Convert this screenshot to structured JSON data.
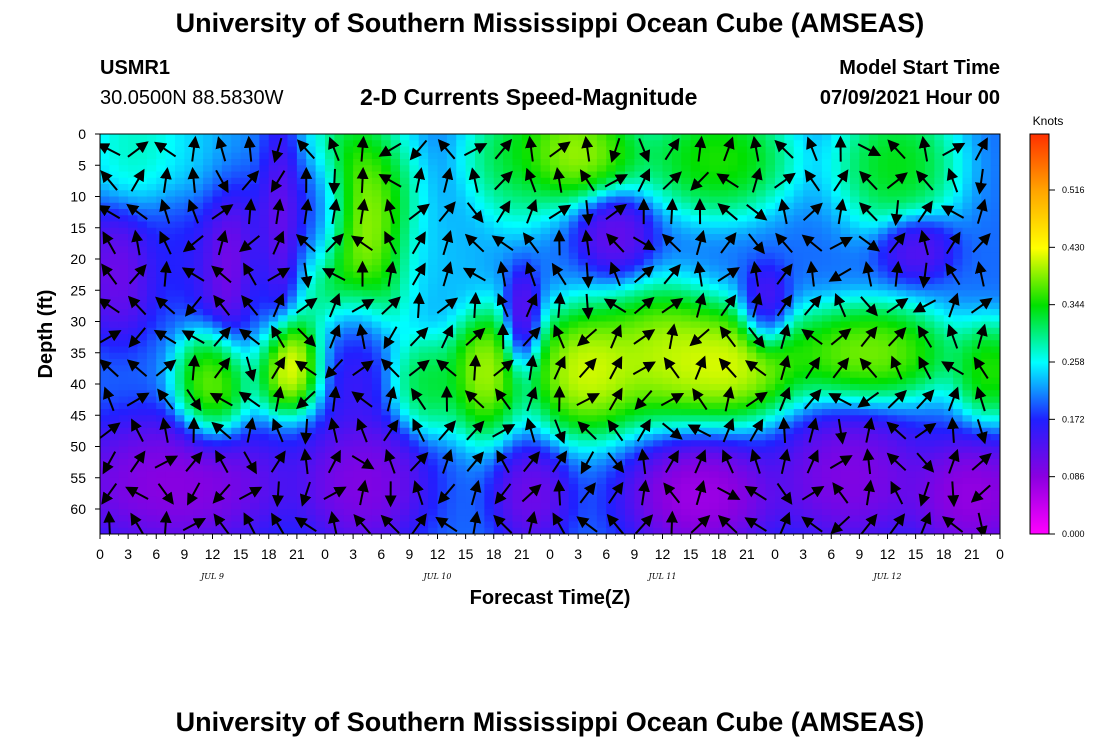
{
  "page": {
    "title_top": "University of Southern Mississippi Ocean Cube (AMSEAS)",
    "title_bottom": "University of Southern Mississippi Ocean Cube (AMSEAS)",
    "station_id": "USMR1",
    "station_coords": "30.0500N  88.5830W",
    "plot_title": "2-D Currents Speed-Magnitude",
    "start_label": "Model Start Time",
    "start_value": "07/09/2021 Hour 00"
  },
  "colors": {
    "scale": [
      "#ff00ff",
      "#8a00e0",
      "#2020ff",
      "#00ffff",
      "#00e000",
      "#ffff00",
      "#ffa500",
      "#ff3000"
    ]
  },
  "chart_data": {
    "type": "heatmap",
    "xlabel": "Forecast Time(Z)",
    "ylabel": "Depth (ft)",
    "x_tick_labels": [
      "0",
      "3",
      "6",
      "9",
      "12",
      "15",
      "18",
      "21",
      "0",
      "3",
      "6",
      "9",
      "12",
      "15",
      "18",
      "21",
      "0",
      "3",
      "6",
      "9",
      "12",
      "15",
      "18",
      "21",
      "0",
      "3",
      "6",
      "9",
      "12",
      "15",
      "18",
      "21",
      "0"
    ],
    "x_range_hours": [
      0,
      96
    ],
    "day_labels": [
      {
        "label": "JUL 9",
        "hour": 12
      },
      {
        "label": "JUL 10",
        "hour": 36
      },
      {
        "label": "JUL 11",
        "hour": 60
      },
      {
        "label": "JUL 12",
        "hour": 84
      }
    ],
    "y_ticks_ft": [
      0,
      5,
      10,
      15,
      20,
      25,
      30,
      35,
      40,
      45,
      50,
      55,
      60
    ],
    "y_range_ft": [
      0,
      64
    ],
    "colorbar": {
      "unit": "Knots",
      "tick_labels": [
        "0.516",
        "0.430",
        "0.344",
        "0.258",
        "0.172",
        "0.086",
        "0.000"
      ],
      "range": [
        0.0,
        0.6
      ]
    },
    "speed_blobs_knots": [
      {
        "hour": 4,
        "depth": 2,
        "speed": 0.3,
        "sh": 4,
        "sd": 8
      },
      {
        "hour": 12,
        "depth": 5,
        "speed": 0.26,
        "sh": 5,
        "sd": 8
      },
      {
        "hour": 9,
        "depth": 18,
        "speed": 0.16,
        "sh": 4,
        "sd": 8
      },
      {
        "hour": 14,
        "depth": 18,
        "speed": 0.05,
        "sh": 3,
        "sd": 12
      },
      {
        "hour": 2,
        "depth": 22,
        "speed": 0.08,
        "sh": 3,
        "sd": 8
      },
      {
        "hour": 19,
        "depth": 14,
        "speed": 0.05,
        "sh": 2,
        "sd": 12
      },
      {
        "hour": 23,
        "depth": 13,
        "speed": 0.07,
        "sh": 3,
        "sd": 8
      },
      {
        "hour": 12,
        "depth": 40,
        "speed": 0.44,
        "sh": 3,
        "sd": 7
      },
      {
        "hour": 20,
        "depth": 37,
        "speed": 0.5,
        "sh": 3,
        "sd": 6
      },
      {
        "hour": 27,
        "depth": 15,
        "speed": 0.47,
        "sh": 5,
        "sd": 14
      },
      {
        "hour": 27,
        "depth": 36,
        "speed": 0.12,
        "sh": 3,
        "sd": 9
      },
      {
        "hour": 35,
        "depth": 40,
        "speed": 0.36,
        "sh": 3,
        "sd": 6
      },
      {
        "hour": 41,
        "depth": 38,
        "speed": 0.46,
        "sh": 3,
        "sd": 8
      },
      {
        "hour": 37,
        "depth": 20,
        "speed": 0.24,
        "sh": 4,
        "sd": 8
      },
      {
        "hour": 44,
        "depth": 5,
        "speed": 0.33,
        "sh": 4,
        "sd": 8
      },
      {
        "hour": 50,
        "depth": 3,
        "speed": 0.46,
        "sh": 6,
        "sd": 6
      },
      {
        "hour": 45,
        "depth": 30,
        "speed": 0.08,
        "sh": 1.5,
        "sd": 6
      },
      {
        "hour": 55,
        "depth": 16,
        "speed": 0.09,
        "sh": 3,
        "sd": 5
      },
      {
        "hour": 52,
        "depth": 38,
        "speed": 0.48,
        "sh": 5,
        "sd": 8
      },
      {
        "hour": 60,
        "depth": 35,
        "speed": 0.45,
        "sh": 5,
        "sd": 8
      },
      {
        "hour": 66,
        "depth": 4,
        "speed": 0.4,
        "sh": 6,
        "sd": 7
      },
      {
        "hour": 67,
        "depth": 37,
        "speed": 0.48,
        "sh": 6,
        "sd": 7
      },
      {
        "hour": 71,
        "depth": 28,
        "speed": 0.1,
        "sh": 2,
        "sd": 5
      },
      {
        "hour": 82,
        "depth": 35,
        "speed": 0.44,
        "sh": 7,
        "sd": 6
      },
      {
        "hour": 85,
        "depth": 5,
        "speed": 0.38,
        "sh": 5,
        "sd": 8
      },
      {
        "hour": 87,
        "depth": 18,
        "speed": 0.1,
        "sh": 3,
        "sd": 4
      },
      {
        "hour": 95,
        "depth": 38,
        "speed": 0.4,
        "sh": 3,
        "sd": 6
      },
      {
        "hour": 8,
        "depth": 56,
        "speed": 0.05,
        "sh": 9,
        "sd": 8
      },
      {
        "hour": 28,
        "depth": 56,
        "speed": 0.06,
        "sh": 5,
        "sd": 8
      },
      {
        "hour": 46,
        "depth": 58,
        "speed": 0.08,
        "sh": 3,
        "sd": 6
      },
      {
        "hour": 64,
        "depth": 58,
        "speed": 0.03,
        "sh": 6,
        "sd": 7
      },
      {
        "hour": 80,
        "depth": 55,
        "speed": 0.06,
        "sh": 6,
        "sd": 8
      },
      {
        "hour": 93,
        "depth": 58,
        "speed": 0.04,
        "sh": 5,
        "sd": 7
      },
      {
        "hour": 17,
        "depth": 22,
        "speed": 0.2,
        "sh": 2,
        "sd": 14
      }
    ],
    "background_speed": 0.2,
    "vectors_note": "arrow field shows current direction at each 2-hour / 5-ft grid point",
    "vector_field": {
      "u_dir_profile": "mixed",
      "grid_hours": 2,
      "grid_depth_ft": 5
    }
  }
}
